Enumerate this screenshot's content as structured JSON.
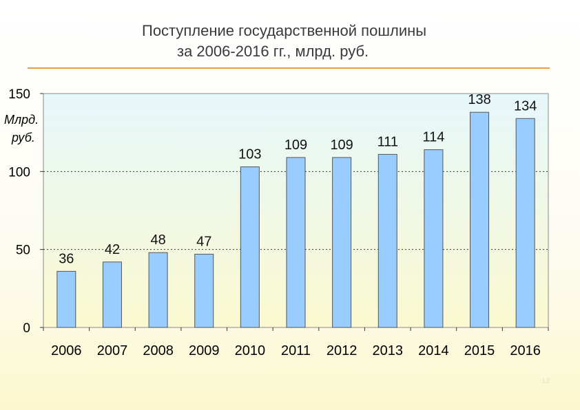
{
  "slide": {
    "title_line1": "Поступление государственной пошлины",
    "title_line2": "за 2006-2016 гг., млрд. руб.",
    "page_number": "12"
  },
  "colors": {
    "bar_fill": "#99ccff",
    "bar_stroke": "#555555",
    "plot_bg_top": "#e6f7fb",
    "plot_bg_bottom": "#fbf9d0",
    "title_rule": "#e0a04a"
  },
  "chart_data": {
    "type": "bar",
    "title": "Поступление государственной пошлины за 2006-2016 гг., млрд. руб.",
    "ylabel_line1": "Млрд.",
    "ylabel_line2": "руб.",
    "xlabel": "",
    "categories": [
      "2006",
      "2007",
      "2008",
      "2009",
      "2010",
      "2011",
      "2012",
      "2013",
      "2014",
      "2015",
      "2016"
    ],
    "values": [
      36,
      42,
      48,
      47,
      103,
      109,
      109,
      111,
      114,
      138,
      134
    ],
    "data_labels": [
      "36",
      "42",
      "48",
      "47",
      "103",
      "109",
      "109",
      "111",
      "114",
      "138",
      "134"
    ],
    "ylim": [
      0,
      150
    ],
    "yticks": [
      0,
      50,
      100,
      150
    ],
    "ytick_labels": [
      "0",
      "50",
      "100",
      "150"
    ],
    "grid": "horizontal dotted",
    "legend": "none"
  }
}
